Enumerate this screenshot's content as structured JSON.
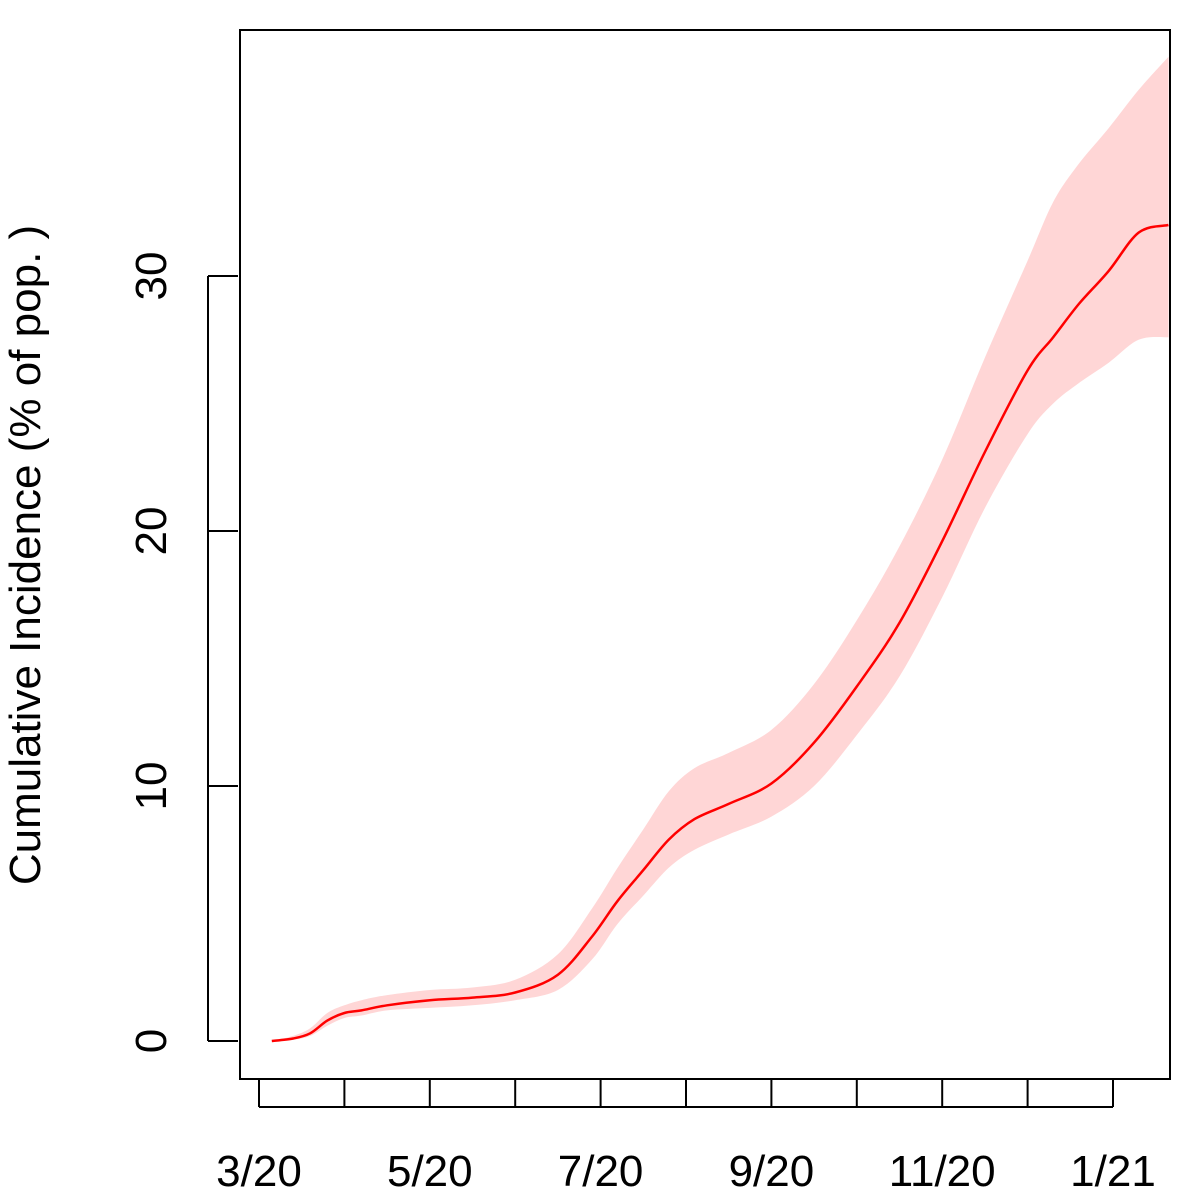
{
  "chart_data": {
    "type": "line",
    "ylabel": "Cumulative Incidence (% of pop. )",
    "xlabel": "",
    "title": "",
    "x_tick_labels": [
      "3/20",
      "5/20",
      "7/20",
      "9/20",
      "11/20",
      "1/21"
    ],
    "x_minor_ticks": [
      "4/20",
      "6/20",
      "8/20",
      "10/20",
      "12/20"
    ],
    "y_ticks": [
      0,
      10,
      20,
      30
    ],
    "ylim": [
      -1.5,
      39.6
    ],
    "xlim_months": [
      0,
      10.93
    ],
    "grid": false,
    "legend": "none",
    "colors": {
      "line": "#ff0000",
      "band": "#ffd6d6",
      "axis": "#000000"
    },
    "series": [
      {
        "type": "line",
        "month_index": [
          0.15,
          0.4,
          0.6,
          0.8,
          1.0,
          1.2,
          1.5,
          2.0,
          2.5,
          3.0,
          3.5,
          3.9,
          4.2,
          4.5,
          4.8,
          5.1,
          5.5,
          6.0,
          6.5,
          7.0,
          7.5,
          8.0,
          8.5,
          9.0,
          9.3,
          9.6,
          9.95,
          10.3,
          10.65
        ],
        "values": [
          0.0,
          0.1,
          0.3,
          0.8,
          1.1,
          1.2,
          1.4,
          1.6,
          1.7,
          1.9,
          2.6,
          4.1,
          5.5,
          6.7,
          7.9,
          8.7,
          9.3,
          10.1,
          11.7,
          13.9,
          16.4,
          19.6,
          23.1,
          26.3,
          27.6,
          28.9,
          30.2,
          31.7,
          32.0
        ]
      },
      {
        "type": "band",
        "month_index": [
          0.15,
          0.4,
          0.6,
          0.8,
          1.0,
          1.2,
          1.5,
          2.0,
          2.5,
          3.0,
          3.5,
          3.9,
          4.2,
          4.5,
          4.8,
          5.1,
          5.5,
          6.0,
          6.5,
          7.0,
          7.5,
          8.0,
          8.5,
          9.0,
          9.3,
          9.6,
          9.95,
          10.3,
          10.65
        ],
        "lower": [
          0.0,
          0.05,
          0.2,
          0.6,
          0.9,
          1.0,
          1.2,
          1.3,
          1.4,
          1.6,
          2.0,
          3.2,
          4.6,
          5.7,
          6.8,
          7.5,
          8.1,
          8.8,
          10.0,
          12.0,
          14.3,
          17.4,
          20.9,
          23.8,
          25.0,
          25.8,
          26.6,
          27.5,
          27.6
        ],
        "upper": [
          0.0,
          0.2,
          0.5,
          1.1,
          1.4,
          1.6,
          1.8,
          2.0,
          2.1,
          2.4,
          3.4,
          5.2,
          6.8,
          8.3,
          9.8,
          10.7,
          11.3,
          12.2,
          14.0,
          16.5,
          19.4,
          22.8,
          26.8,
          30.6,
          32.9,
          34.4,
          35.8,
          37.3,
          38.6
        ]
      }
    ]
  }
}
